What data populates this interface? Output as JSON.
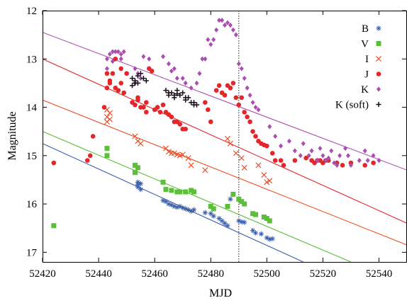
{
  "chart_data": {
    "type": "scatter",
    "xlabel": "MJD",
    "ylabel": "Magnitude",
    "xlim": [
      52420,
      52550
    ],
    "ylim": [
      17.2,
      12
    ],
    "y_inverted": true,
    "x_ticks": [
      52420,
      52440,
      52460,
      52480,
      52500,
      52520,
      52540
    ],
    "y_ticks": [
      12,
      13,
      14,
      15,
      16,
      17
    ],
    "grid": false,
    "legend_position": "top-right",
    "vertical_line": {
      "x": 52490,
      "style": "dotted",
      "color": "#444444"
    },
    "series": [
      {
        "name": "B",
        "marker": "asterisk",
        "color": "#3a5fad",
        "points": [
          [
            52454,
            15.55
          ],
          [
            52454,
            15.6
          ],
          [
            52454,
            15.65
          ],
          [
            52455,
            15.7
          ],
          [
            52455,
            15.58
          ],
          [
            52463,
            15.93
          ],
          [
            52464,
            15.95
          ],
          [
            52465,
            16.0
          ],
          [
            52466,
            16.02
          ],
          [
            52467,
            16.05
          ],
          [
            52468,
            16.07
          ],
          [
            52469,
            16.05
          ],
          [
            52470,
            16.08
          ],
          [
            52471,
            16.1
          ],
          [
            52472,
            16.12
          ],
          [
            52473,
            16.15
          ],
          [
            52474,
            16.12
          ],
          [
            52478,
            16.18
          ],
          [
            52480,
            16.2
          ],
          [
            52481,
            16.25
          ],
          [
            52483,
            16.3
          ],
          [
            52484,
            16.35
          ],
          [
            52485,
            16.4
          ],
          [
            52486,
            16.45
          ],
          [
            52487,
            15.9
          ],
          [
            52490,
            16.35
          ],
          [
            52491,
            16.37
          ],
          [
            52492,
            16.38
          ],
          [
            52495,
            16.55
          ],
          [
            52496,
            16.6
          ],
          [
            52498,
            16.62
          ],
          [
            52500,
            16.7
          ],
          [
            52501,
            16.73
          ],
          [
            52502,
            16.72
          ]
        ]
      },
      {
        "name": "V",
        "marker": "square",
        "color": "#5cbf3a",
        "points": [
          [
            52424,
            16.45
          ],
          [
            52443,
            14.85
          ],
          [
            52443,
            15.0
          ],
          [
            52453,
            15.2
          ],
          [
            52453,
            15.35
          ],
          [
            52454,
            15.25
          ],
          [
            52463,
            15.55
          ],
          [
            52464,
            15.7
          ],
          [
            52466,
            15.72
          ],
          [
            52468,
            15.75
          ],
          [
            52469,
            15.75
          ],
          [
            52471,
            15.75
          ],
          [
            52473,
            15.72
          ],
          [
            52474,
            15.75
          ],
          [
            52480,
            16.05
          ],
          [
            52481,
            16.1
          ],
          [
            52486,
            16.05
          ],
          [
            52488,
            15.8
          ],
          [
            52490,
            15.9
          ],
          [
            52491,
            15.95
          ],
          [
            52492,
            16.0
          ],
          [
            52495,
            16.2
          ],
          [
            52496,
            16.22
          ],
          [
            52499,
            16.27
          ],
          [
            52500,
            16.3
          ],
          [
            52501,
            16.35
          ]
        ]
      },
      {
        "name": "I",
        "marker": "cross",
        "color": "#e8512a",
        "points": [
          [
            52443,
            14.05
          ],
          [
            52443,
            14.2
          ],
          [
            52443,
            14.3
          ],
          [
            52444,
            14.12
          ],
          [
            52444,
            14.25
          ],
          [
            52453,
            14.6
          ],
          [
            52454,
            14.7
          ],
          [
            52455,
            14.75
          ],
          [
            52464,
            14.85
          ],
          [
            52465,
            14.92
          ],
          [
            52466,
            14.95
          ],
          [
            52467,
            14.95
          ],
          [
            52468,
            14.98
          ],
          [
            52469,
            15.0
          ],
          [
            52470,
            14.98
          ],
          [
            52472,
            15.05
          ],
          [
            52473,
            15.2
          ],
          [
            52478,
            15.3
          ],
          [
            52486,
            14.65
          ],
          [
            52487,
            14.75
          ],
          [
            52489,
            14.95
          ],
          [
            52491,
            15.05
          ],
          [
            52492,
            15.25
          ],
          [
            52497,
            15.2
          ],
          [
            52499,
            15.4
          ],
          [
            52500,
            15.55
          ],
          [
            52501,
            15.52
          ]
        ]
      },
      {
        "name": "J",
        "marker": "circle",
        "color": "#e3262a",
        "points": [
          [
            52424,
            15.15
          ],
          [
            52436,
            15.1
          ],
          [
            52437,
            15.0
          ],
          [
            52438,
            14.6
          ],
          [
            52442,
            14.0
          ],
          [
            52443,
            13.6
          ],
          [
            52443,
            13.3
          ],
          [
            52444,
            13.45
          ],
          [
            52444,
            13.5
          ],
          [
            52445,
            13.3
          ],
          [
            52446,
            13.0
          ],
          [
            52446,
            13.6
          ],
          [
            52447,
            13.65
          ],
          [
            52448,
            13.2
          ],
          [
            52448,
            13.5
          ],
          [
            52449,
            13.7
          ],
          [
            52450,
            13.3
          ],
          [
            52452,
            13.9
          ],
          [
            52453,
            13.95
          ],
          [
            52454,
            13.85
          ],
          [
            52454,
            13.8
          ],
          [
            52455,
            14.0
          ],
          [
            52456,
            14.0
          ],
          [
            52457,
            14.1
          ],
          [
            52457,
            13.9
          ],
          [
            52458,
            13.2
          ],
          [
            52459,
            13.25
          ],
          [
            52460,
            14.05
          ],
          [
            52461,
            14.0
          ],
          [
            52462,
            14.1
          ],
          [
            52463,
            13.95
          ],
          [
            52464,
            14.1
          ],
          [
            52465,
            14.15
          ],
          [
            52466,
            14.2
          ],
          [
            52467,
            14.3
          ],
          [
            52468,
            14.3
          ],
          [
            52469,
            14.35
          ],
          [
            52470,
            14.45
          ],
          [
            52471,
            14.45
          ],
          [
            52478,
            13.9
          ],
          [
            52479,
            14.05
          ],
          [
            52480,
            14.3
          ],
          [
            52482,
            13.65
          ],
          [
            52483,
            13.55
          ],
          [
            52484,
            13.7
          ],
          [
            52485,
            13.75
          ],
          [
            52486,
            13.55
          ],
          [
            52487,
            13.6
          ],
          [
            52488,
            13.5
          ],
          [
            52489,
            13.8
          ],
          [
            52490,
            13.95
          ],
          [
            52491,
            13.8
          ],
          [
            52492,
            14.1
          ],
          [
            52493,
            14.2
          ],
          [
            52494,
            14.3
          ],
          [
            52495,
            14.5
          ],
          [
            52496,
            14.6
          ],
          [
            52497,
            14.7
          ],
          [
            52498,
            14.75
          ],
          [
            52499,
            14.78
          ],
          [
            52500,
            14.8
          ],
          [
            52502,
            14.95
          ],
          [
            52503,
            15.1
          ],
          [
            52505,
            15.1
          ],
          [
            52506,
            15.2
          ],
          [
            52510,
            15.1
          ],
          [
            52514,
            15.05
          ],
          [
            52516,
            15.1
          ],
          [
            52517,
            15.15
          ],
          [
            52518,
            15.1
          ],
          [
            52519,
            15.1
          ],
          [
            52520,
            15.15
          ],
          [
            52521,
            15.1
          ],
          [
            52522,
            15.1
          ],
          [
            52525,
            15.15
          ],
          [
            52527,
            15.2
          ],
          [
            52530,
            15.15
          ],
          [
            52535,
            15.2
          ],
          [
            52538,
            15.15
          ]
        ]
      },
      {
        "name": "K",
        "marker": "diamond",
        "color": "#aa4eb0",
        "points": [
          [
            52443,
            13.2
          ],
          [
            52443,
            13.0
          ],
          [
            52444,
            12.9
          ],
          [
            52445,
            12.85
          ],
          [
            52445,
            13.05
          ],
          [
            52446,
            12.85
          ],
          [
            52447,
            12.85
          ],
          [
            52448,
            12.9
          ],
          [
            52448,
            13.0
          ],
          [
            52449,
            12.85
          ],
          [
            52453,
            13.2
          ],
          [
            52453,
            13.5
          ],
          [
            52454,
            13.3
          ],
          [
            52455,
            13.4
          ],
          [
            52456,
            12.95
          ],
          [
            52458,
            13.0
          ],
          [
            52463,
            12.95
          ],
          [
            52465,
            13.1
          ],
          [
            52466,
            13.25
          ],
          [
            52467,
            13.2
          ],
          [
            52468,
            13.4
          ],
          [
            52470,
            13.4
          ],
          [
            52471,
            13.5
          ],
          [
            52473,
            13.6
          ],
          [
            52475,
            13.5
          ],
          [
            52476,
            13.3
          ],
          [
            52477,
            13.0
          ],
          [
            52478,
            13.0
          ],
          [
            52479,
            12.6
          ],
          [
            52480,
            12.7
          ],
          [
            52481,
            12.6
          ],
          [
            52482,
            12.4
          ],
          [
            52483,
            12.2
          ],
          [
            52484,
            12.2
          ],
          [
            52485,
            12.3
          ],
          [
            52486,
            12.25
          ],
          [
            52487,
            12.3
          ],
          [
            52488,
            12.4
          ],
          [
            52489,
            12.5
          ],
          [
            52490,
            13.1
          ],
          [
            52491,
            13.2
          ],
          [
            52492,
            13.4
          ],
          [
            52493,
            13.6
          ],
          [
            52494,
            13.75
          ],
          [
            52495,
            13.9
          ],
          [
            52496,
            14.0
          ],
          [
            52497,
            14.05
          ],
          [
            52501,
            14.4
          ],
          [
            52503,
            14.6
          ],
          [
            52505,
            14.8
          ],
          [
            52508,
            14.7
          ],
          [
            52510,
            14.9
          ],
          [
            52512,
            15.0
          ],
          [
            52513,
            14.75
          ],
          [
            52515,
            15.0
          ],
          [
            52516,
            14.9
          ],
          [
            52518,
            15.1
          ],
          [
            52519,
            14.85
          ],
          [
            52520,
            15.0
          ],
          [
            52521,
            15.1
          ],
          [
            52522,
            15.05
          ],
          [
            52523,
            14.9
          ],
          [
            52524,
            15.15
          ],
          [
            52525,
            15.2
          ],
          [
            52526,
            15.0
          ],
          [
            52528,
            14.85
          ],
          [
            52529,
            15.0
          ],
          [
            52530,
            15.2
          ],
          [
            52533,
            15.1
          ],
          [
            52535,
            14.9
          ],
          [
            52536,
            15.1
          ],
          [
            52538,
            15.0
          ],
          [
            52540,
            15.1
          ]
        ]
      },
      {
        "name": "K (soft)",
        "marker": "plus",
        "color": "#1a0d1a",
        "points": [
          [
            52452,
            13.4
          ],
          [
            52452,
            13.55
          ],
          [
            52453,
            13.5
          ],
          [
            52453,
            13.45
          ],
          [
            52454,
            13.35
          ],
          [
            52454,
            13.5
          ],
          [
            52455,
            13.3
          ],
          [
            52456,
            13.4
          ],
          [
            52457,
            13.45
          ],
          [
            52464,
            13.65
          ],
          [
            52465,
            13.7
          ],
          [
            52465,
            13.75
          ],
          [
            52466,
            13.7
          ],
          [
            52467,
            13.75
          ],
          [
            52467,
            13.8
          ],
          [
            52468,
            13.65
          ],
          [
            52468,
            13.72
          ],
          [
            52469,
            13.75
          ],
          [
            52470,
            13.7
          ],
          [
            52471,
            13.8
          ],
          [
            52471,
            13.85
          ],
          [
            52472,
            13.8
          ],
          [
            52473,
            13.9
          ],
          [
            52474,
            13.9
          ],
          [
            52474,
            13.95
          ],
          [
            52475,
            13.95
          ]
        ]
      }
    ],
    "trend_lines": [
      {
        "color": "#aa4eb0",
        "x": [
          52420,
          52550
        ],
        "y": [
          12.45,
          15.3
        ]
      },
      {
        "color": "#e3262a",
        "x": [
          52420,
          52550
        ],
        "y": [
          13.0,
          16.4
        ]
      },
      {
        "color": "#e8512a",
        "x": [
          52420,
          52550
        ],
        "y": [
          13.85,
          16.85
        ]
      },
      {
        "color": "#5cbf3a",
        "x": [
          52420,
          52530
        ],
        "y": [
          14.5,
          17.2
        ]
      },
      {
        "color": "#3a5fad",
        "x": [
          52420,
          52513
        ],
        "y": [
          14.75,
          17.2
        ]
      }
    ]
  }
}
